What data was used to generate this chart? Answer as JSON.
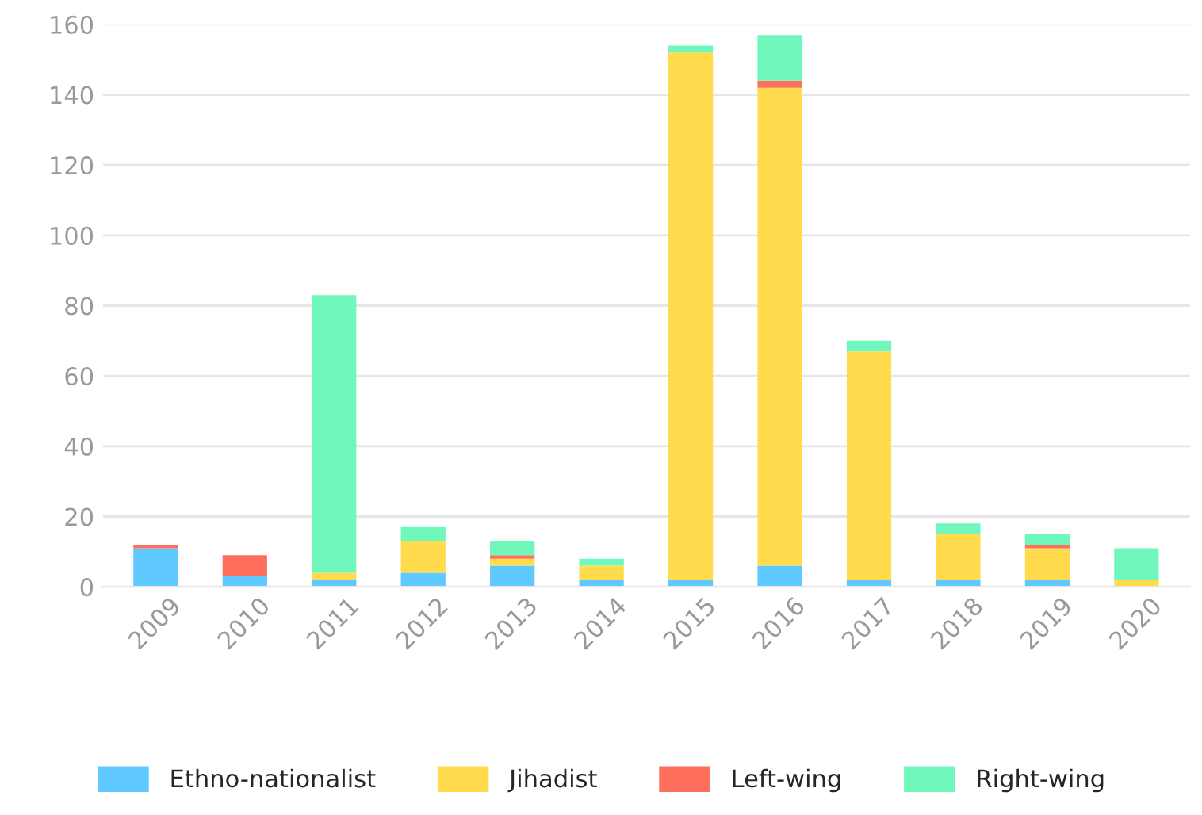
{
  "chart_data": {
    "type": "bar",
    "stacked": true,
    "categories": [
      "2009",
      "2010",
      "2011",
      "2012",
      "2013",
      "2014",
      "2015",
      "2016",
      "2017",
      "2018",
      "2019",
      "2020"
    ],
    "series": [
      {
        "name": "Ethno-nationalist",
        "color": "#5ec8ff",
        "values": [
          11,
          3,
          2,
          4,
          6,
          2,
          2,
          6,
          2,
          2,
          2,
          0
        ]
      },
      {
        "name": "Jihadist",
        "color": "#ffdb4d",
        "values": [
          0,
          0,
          2,
          9,
          2,
          4,
          150,
          136,
          65,
          13,
          9,
          2
        ]
      },
      {
        "name": "Left-wing",
        "color": "#ff6f5e",
        "values": [
          1,
          6,
          0,
          0,
          1,
          0,
          0,
          2,
          0,
          0,
          1,
          0
        ]
      },
      {
        "name": "Right-wing",
        "color": "#70f7bb",
        "values": [
          0,
          0,
          79,
          4,
          4,
          2,
          2,
          13,
          3,
          3,
          3,
          9
        ]
      }
    ],
    "ylim": [
      0,
      160
    ],
    "yticks": [
      0,
      20,
      40,
      60,
      80,
      100,
      120,
      140,
      160
    ],
    "grid": "y",
    "legend": "bottom"
  }
}
